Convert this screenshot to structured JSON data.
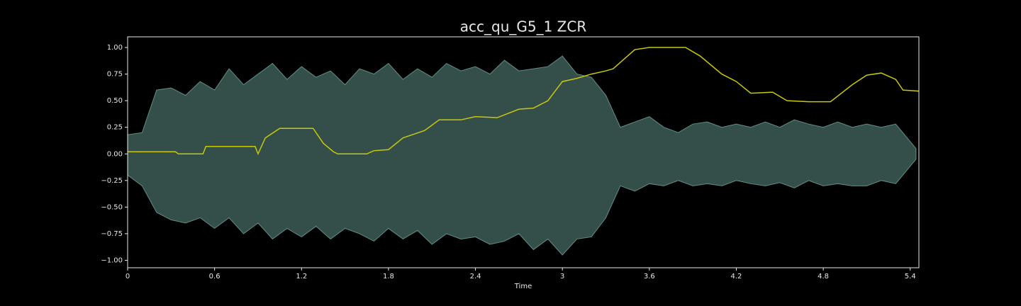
{
  "chart_data": {
    "type": "line",
    "title": "acc_qu_G5_1 ZCR",
    "xlabel": "Time",
    "xlim": [
      0,
      5.46
    ],
    "ylim": [
      -1.07,
      1.1
    ],
    "xticks": [
      0,
      0.6,
      1.2,
      1.8,
      2.4,
      3,
      3.6,
      4.2,
      4.8,
      5.4
    ],
    "yticks": [
      {
        "value": -1,
        "label": "−1.00"
      },
      {
        "value": -0.75,
        "label": "−0.75"
      },
      {
        "value": -0.5,
        "label": "−0.50"
      },
      {
        "value": -0.25,
        "label": "−0.25"
      },
      {
        "value": 0,
        "label": "0.00"
      },
      {
        "value": 0.25,
        "label": "0.25"
      },
      {
        "value": 0.5,
        "label": "0.50"
      },
      {
        "value": 0.75,
        "label": "0.75"
      },
      {
        "value": 1,
        "label": "1.00"
      }
    ],
    "series": [
      {
        "color": "#5f8f86",
        "x": [
          0,
          0.1,
          0.2,
          0.3,
          0.4,
          0.5,
          0.6,
          0.7,
          0.8,
          0.9,
          1.0,
          1.1,
          1.2,
          1.3,
          1.4,
          1.5,
          1.6,
          1.7,
          1.8,
          1.9,
          2.0,
          2.1,
          2.2,
          2.3,
          2.4,
          2.5,
          2.6,
          2.7,
          2.8,
          2.9,
          3.0,
          3.1,
          3.2,
          3.3,
          3.4,
          3.5,
          3.6,
          3.7,
          3.8,
          3.9,
          4.0,
          4.1,
          4.2,
          4.3,
          4.4,
          4.5,
          4.6,
          4.7,
          4.8,
          4.9,
          5.0,
          5.1,
          5.2,
          5.3,
          5.44
        ],
        "upper": [
          0.18,
          0.2,
          0.6,
          0.62,
          0.55,
          0.68,
          0.6,
          0.8,
          0.65,
          0.75,
          0.85,
          0.7,
          0.82,
          0.72,
          0.78,
          0.65,
          0.8,
          0.75,
          0.85,
          0.7,
          0.8,
          0.72,
          0.85,
          0.78,
          0.82,
          0.75,
          0.88,
          0.78,
          0.8,
          0.82,
          0.92,
          0.75,
          0.72,
          0.55,
          0.25,
          0.3,
          0.35,
          0.25,
          0.2,
          0.28,
          0.3,
          0.25,
          0.28,
          0.25,
          0.3,
          0.25,
          0.32,
          0.28,
          0.25,
          0.3,
          0.25,
          0.28,
          0.25,
          0.28,
          0.05
        ],
        "lower": [
          -0.2,
          -0.3,
          -0.55,
          -0.62,
          -0.65,
          -0.6,
          -0.7,
          -0.6,
          -0.75,
          -0.65,
          -0.8,
          -0.7,
          -0.78,
          -0.68,
          -0.8,
          -0.7,
          -0.75,
          -0.82,
          -0.7,
          -0.8,
          -0.72,
          -0.85,
          -0.75,
          -0.8,
          -0.78,
          -0.85,
          -0.82,
          -0.75,
          -0.9,
          -0.8,
          -0.95,
          -0.8,
          -0.78,
          -0.6,
          -0.3,
          -0.35,
          -0.28,
          -0.3,
          -0.25,
          -0.3,
          -0.28,
          -0.3,
          -0.25,
          -0.28,
          -0.3,
          -0.27,
          -0.32,
          -0.25,
          -0.3,
          -0.28,
          -0.3,
          -0.3,
          -0.25,
          -0.28,
          -0.05
        ]
      },
      {
        "color": "#c8c80a",
        "x": [
          0,
          0.33,
          0.35,
          0.52,
          0.54,
          0.88,
          0.9,
          0.95,
          1.05,
          1.28,
          1.35,
          1.42,
          1.45,
          1.65,
          1.7,
          1.8,
          1.9,
          2.05,
          2.15,
          2.3,
          2.4,
          2.55,
          2.7,
          2.8,
          2.9,
          3.0,
          3.1,
          3.2,
          3.3,
          3.35,
          3.5,
          3.6,
          3.85,
          3.95,
          4.1,
          4.2,
          4.3,
          4.45,
          4.55,
          4.7,
          4.85,
          5.0,
          5.1,
          5.2,
          5.3,
          5.35,
          5.46
        ],
        "values": [
          0.02,
          0.02,
          0,
          0,
          0.07,
          0.07,
          0,
          0.15,
          0.24,
          0.24,
          0.1,
          0.02,
          0,
          0,
          0.03,
          0.04,
          0.15,
          0.22,
          0.32,
          0.32,
          0.35,
          0.34,
          0.42,
          0.43,
          0.5,
          0.68,
          0.71,
          0.75,
          0.78,
          0.8,
          0.98,
          1.0,
          1.0,
          0.92,
          0.75,
          0.68,
          0.57,
          0.58,
          0.5,
          0.49,
          0.49,
          0.65,
          0.74,
          0.76,
          0.7,
          0.6,
          0.59
        ]
      }
    ]
  }
}
